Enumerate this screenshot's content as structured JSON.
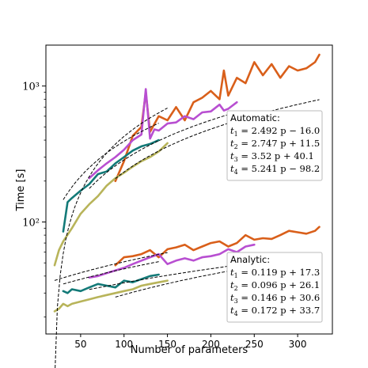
{
  "chart_data": {
    "type": "line",
    "xlabel": "Number of parameters",
    "ylabel": "Time [s]",
    "xlim": [
      10,
      340
    ],
    "ylim": [
      15,
      2000
    ],
    "yscale": "log",
    "x_ticks": [
      50,
      100,
      150,
      200,
      250,
      300
    ],
    "x_tick_labels": [
      "50",
      "100",
      "150",
      "200",
      "250",
      "300"
    ],
    "y_ticks": [
      100,
      1000
    ],
    "y_tick_labels": [
      "10²",
      "10³"
    ],
    "series_colors": [
      "#d95f1a",
      "#b84fd1",
      "#137a78",
      "#b8b45a"
    ],
    "series": [
      {
        "group": "automatic",
        "x": [
          90,
          100,
          110,
          120,
          125,
          130,
          140,
          150,
          160,
          170,
          180,
          190,
          200,
          210,
          215,
          220,
          230,
          240,
          250,
          260,
          270,
          280,
          290,
          300,
          310,
          320,
          325
        ],
        "y": [
          200,
          280,
          430,
          500,
          900,
          460,
          600,
          560,
          700,
          560,
          760,
          820,
          920,
          800,
          1300,
          850,
          1150,
          1050,
          1500,
          1200,
          1450,
          1150,
          1400,
          1300,
          1350,
          1500,
          1700
        ]
      },
      {
        "group": "automatic",
        "x": [
          60,
          70,
          80,
          90,
          100,
          110,
          120,
          125,
          130,
          135,
          140,
          150,
          160,
          170,
          180,
          190,
          200,
          210,
          215,
          220,
          230
        ],
        "y": [
          210,
          240,
          270,
          300,
          340,
          400,
          440,
          950,
          410,
          480,
          470,
          530,
          540,
          600,
          570,
          640,
          650,
          730,
          660,
          680,
          760
        ]
      },
      {
        "group": "automatic",
        "x": [
          30,
          35,
          40,
          50,
          60,
          70,
          80,
          90,
          100,
          110,
          120,
          130,
          140
        ],
        "y": [
          85,
          140,
          150,
          170,
          190,
          225,
          235,
          270,
          300,
          335,
          360,
          375,
          400
        ]
      },
      {
        "group": "automatic",
        "x": [
          20,
          25,
          30,
          40,
          50,
          60,
          70,
          80,
          90,
          100,
          110,
          120,
          130,
          140,
          150
        ],
        "y": [
          48,
          62,
          72,
          90,
          115,
          135,
          155,
          185,
          210,
          230,
          255,
          280,
          300,
          330,
          380
        ]
      },
      {
        "group": "analytic",
        "x": [
          90,
          100,
          110,
          120,
          130,
          140,
          150,
          160,
          170,
          180,
          190,
          200,
          210,
          220,
          230,
          240,
          250,
          260,
          270,
          280,
          290,
          300,
          310,
          320,
          325
        ],
        "y": [
          48,
          55,
          56,
          58,
          62,
          55,
          63,
          65,
          68,
          62,
          66,
          70,
          72,
          66,
          70,
          80,
          74,
          76,
          75,
          80,
          86,
          84,
          82,
          86,
          92
        ]
      },
      {
        "group": "analytic",
        "x": [
          60,
          70,
          80,
          90,
          100,
          110,
          120,
          130,
          140,
          150,
          160,
          170,
          180,
          190,
          200,
          210,
          220,
          230,
          240,
          250
        ],
        "y": [
          39,
          40,
          42,
          44,
          46,
          49,
          52,
          55,
          58,
          49,
          52,
          54,
          52,
          55,
          56,
          58,
          63,
          60,
          66,
          68
        ]
      },
      {
        "group": "analytic",
        "x": [
          30,
          35,
          40,
          50,
          60,
          70,
          80,
          90,
          100,
          110,
          120,
          130,
          140
        ],
        "y": [
          31,
          30,
          32,
          31,
          33,
          35,
          34,
          33,
          37,
          36,
          38,
          40,
          41
        ]
      },
      {
        "group": "analytic",
        "x": [
          20,
          25,
          30,
          35,
          40,
          50,
          60,
          70,
          80,
          90,
          100,
          110,
          120,
          130,
          140,
          150
        ],
        "y": [
          22,
          23,
          25,
          24,
          25,
          26,
          27,
          28,
          29,
          30,
          31,
          32,
          34,
          35,
          36,
          37
        ]
      }
    ],
    "fits": [
      {
        "group": "automatic",
        "slope": 2.492,
        "intercept": -16.0,
        "x_range": [
          90,
          325
        ]
      },
      {
        "group": "automatic",
        "slope": 2.747,
        "intercept": 11.5,
        "x_range": [
          60,
          230
        ]
      },
      {
        "group": "automatic",
        "slope": 3.52,
        "intercept": 40.1,
        "x_range": [
          30,
          140
        ]
      },
      {
        "group": "automatic",
        "slope": 5.241,
        "intercept": -98.2,
        "x_range": [
          20,
          150
        ]
      },
      {
        "group": "analytic",
        "slope": 0.119,
        "intercept": 17.3,
        "x_range": [
          90,
          325
        ]
      },
      {
        "group": "analytic",
        "slope": 0.096,
        "intercept": 26.1,
        "x_range": [
          60,
          250
        ]
      },
      {
        "group": "analytic",
        "slope": 0.146,
        "intercept": 30.6,
        "x_range": [
          30,
          140
        ]
      },
      {
        "group": "analytic",
        "slope": 0.172,
        "intercept": 33.7,
        "x_range": [
          20,
          150
        ]
      }
    ],
    "annotations": [
      {
        "title": "Automatic:",
        "lines": [
          {
            "sub": "1",
            "eq": "= 2.492 p − 16.0"
          },
          {
            "sub": "2",
            "eq": "= 2.747 p + 11.5"
          },
          {
            "sub": "3",
            "eq": "= 3.52 p + 40.1"
          },
          {
            "sub": "4",
            "eq": "= 5.241 p − 98.2"
          }
        ]
      },
      {
        "title": "Analytic:",
        "lines": [
          {
            "sub": "1",
            "eq": "= 0.119 p + 17.3"
          },
          {
            "sub": "2",
            "eq": "= 0.096 p + 26.1"
          },
          {
            "sub": "3",
            "eq": "= 0.146 p + 30.6"
          },
          {
            "sub": "4",
            "eq": "= 0.172 p + 33.7"
          }
        ]
      }
    ],
    "grid": false,
    "legend": "none"
  }
}
